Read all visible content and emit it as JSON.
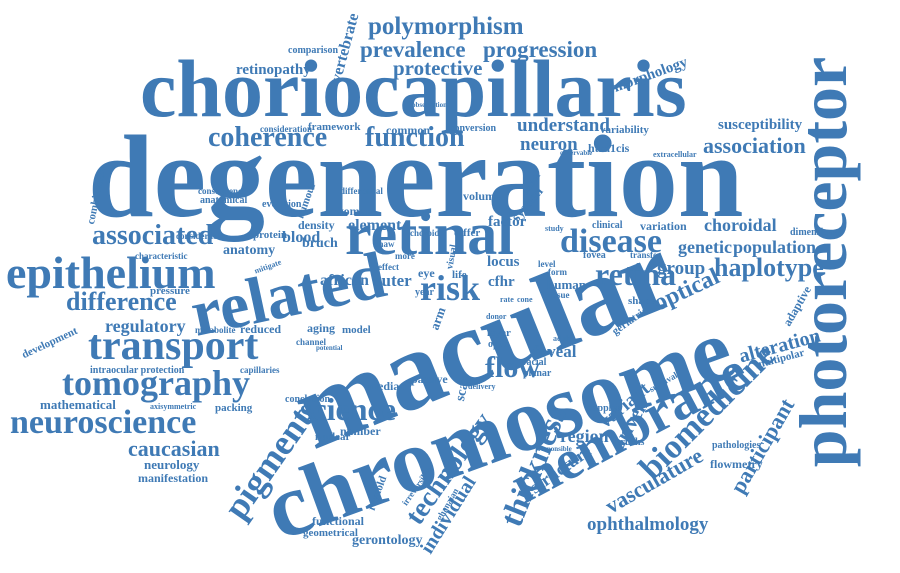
{
  "word_color": "#3f7ab5",
  "background": "#ffffff",
  "words": [
    "degeneration",
    "choriocapillaris",
    "macular",
    "chromosome",
    "photoreceptor",
    "related",
    "retinal",
    "epithelium",
    "membrane",
    "transport",
    "tomography",
    "neuroscience",
    "disease",
    "science",
    "risk",
    "retina",
    "biomedicine",
    "pigment",
    "associated",
    "technology",
    "thickness",
    "coherence",
    "function",
    "difference",
    "haplotype",
    "polymorphism",
    "prevalence",
    "progression",
    "protective",
    "association",
    "flow",
    "optical",
    "vasculature",
    "caucasian",
    "ophthalmology",
    "participant",
    "alteration",
    "regulatory",
    "individual",
    "structure",
    "choroidal",
    "genetic",
    "population",
    "group",
    "variant",
    "driven",
    "region",
    "foveal",
    "neuron",
    "understand",
    "susceptibility",
    "morphology",
    "vertebrate",
    "retinopathy",
    "framework",
    "common",
    "conversion",
    "variability",
    "htra1cis",
    "factor",
    "locus",
    "system",
    "element",
    "bruch",
    "blood",
    "density",
    "anatomy",
    "african",
    "outer",
    "mathematical",
    "neurology",
    "manifestation",
    "gerontology",
    "functional",
    "geometrical",
    "reynold",
    "flowmetry",
    "pathologies",
    "adaptive",
    "multipolar",
    "aging",
    "model",
    "median",
    "conclusion",
    "number",
    "nuclear",
    "capillaries",
    "packing",
    "intraocular protection",
    "development",
    "combination",
    "pressure",
    "reduced",
    "metabolite",
    "characteristic",
    "considerable",
    "protein",
    "woman",
    "evolution",
    "consequence",
    "anatomical",
    "humour",
    "differential",
    "comparison",
    "consideration",
    "volume",
    "human",
    "cfhr",
    "passive",
    "layer",
    "optic",
    "eye",
    "life",
    "doppler",
    "bruchs",
    "geriatric",
    "shape",
    "fovea",
    "transfer",
    "clinical",
    "variation",
    "dimensional",
    "extracellular",
    "observable",
    "observation",
    "scalink",
    "tissue",
    "racial",
    "planar",
    "adult",
    "delivery",
    "responsible",
    "irreversible",
    "ghanaian",
    "arm",
    "scar",
    "year",
    "rate",
    "cone",
    "donor",
    "choroid",
    "differ",
    "visual",
    "level",
    "study",
    "form",
    "shaw",
    "more",
    "effect",
    "survival",
    "mitigate",
    "axisymmetric",
    "channel",
    "potential"
  ]
}
